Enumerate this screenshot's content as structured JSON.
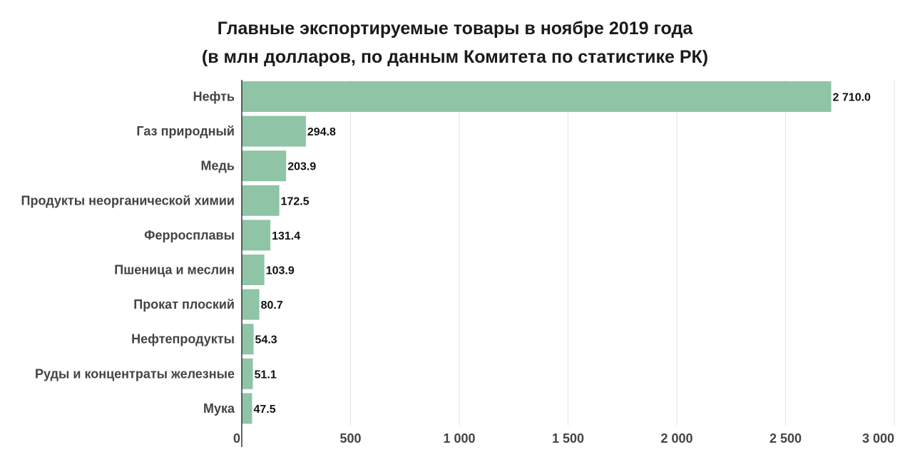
{
  "chart_data": {
    "type": "bar",
    "orientation": "horizontal",
    "title": "Главные экспортируемые товары в ноябре 2019 года",
    "subtitle": "(в млн долларов, по данным Комитета по статистике РК)",
    "categories": [
      "Нефть",
      "Газ природный",
      "Медь",
      "Продукты неорганической химии",
      "Ферросплавы",
      "Пшеница и меслин",
      "Прокат плоский",
      "Нефтепродукты",
      "Руды и концентраты железные",
      "Мука"
    ],
    "values": [
      2710.0,
      294.8,
      203.9,
      172.5,
      131.4,
      103.9,
      80.7,
      54.3,
      51.1,
      47.5
    ],
    "value_labels": [
      "2 710.0",
      "294.8",
      "203.9",
      "172.5",
      "131.4",
      "103.9",
      "80.7",
      "54.3",
      "51.1",
      "47.5"
    ],
    "xlim": [
      0,
      3000
    ],
    "ticks": [
      0,
      500,
      1000,
      1500,
      2000,
      2500,
      3000
    ],
    "tick_labels": [
      "0",
      "500",
      "1 000",
      "1 500",
      "2 000",
      "2 500",
      "3 000"
    ],
    "grid": true,
    "bar_color": "#8fc4a6",
    "grid_color": "#e3e3e3",
    "axis_color": "#333333"
  }
}
